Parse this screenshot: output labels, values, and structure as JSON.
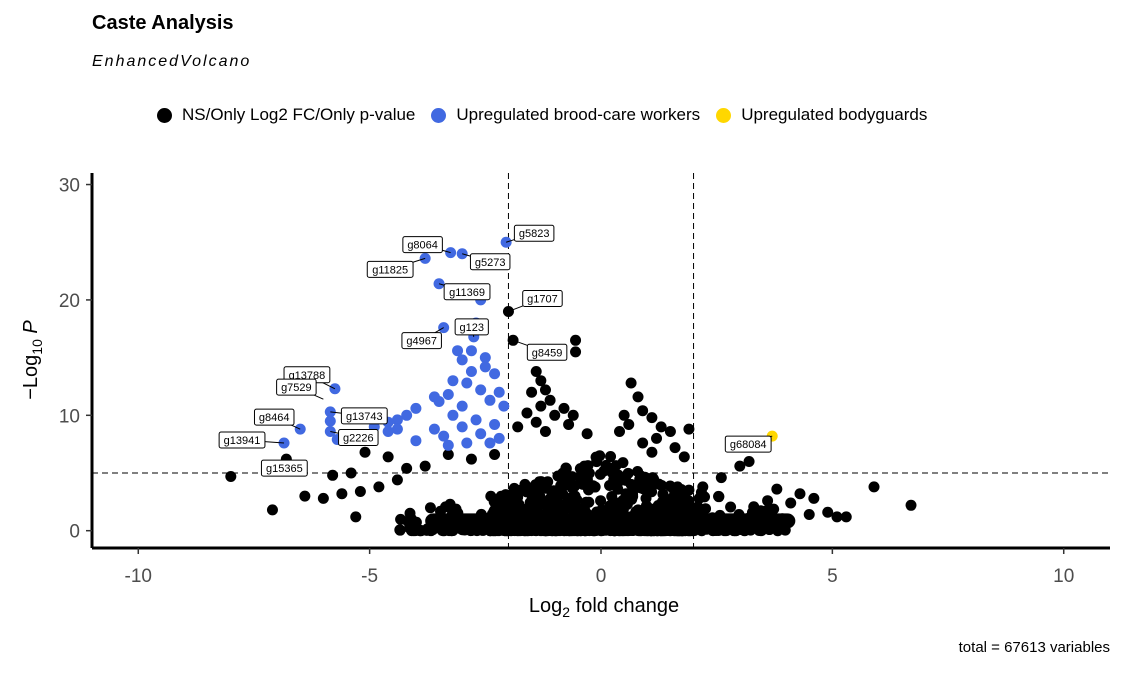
{
  "title": "Caste Analysis",
  "subtitle": "EnhancedVolcano",
  "caption": "total = 67613 variables",
  "legend": [
    {
      "label": "NS/Only Log2 FC/Only p-value",
      "color": "#000000"
    },
    {
      "label": "Upregulated brood-care workers",
      "color": "#4169E1"
    },
    {
      "label": "Upregulated bodyguards",
      "color": "#FFD700"
    }
  ],
  "chart_data": {
    "type": "scatter",
    "title": "Caste Analysis",
    "subtitle": "EnhancedVolcano",
    "xlabel": "Log2 fold change",
    "ylabel": "-Log10 P",
    "xlim": [
      -11,
      11
    ],
    "ylim": [
      -1.5,
      31
    ],
    "xticks": [
      -10,
      -5,
      0,
      5,
      10
    ],
    "yticks": [
      0,
      10,
      20,
      30
    ],
    "fc_cutoffs": [
      -2,
      2
    ],
    "p_cutoff_log10": 5,
    "series": [
      {
        "name": "Upregulated brood-care workers",
        "color": "#4169E1",
        "points": [
          {
            "x": -2.05,
            "y": 25.0,
            "label": "g5823"
          },
          {
            "x": -3.25,
            "y": 24.1,
            "label": "g8064"
          },
          {
            "x": -3.0,
            "y": 24.0,
            "label": "g5273"
          },
          {
            "x": -3.8,
            "y": 23.6,
            "label": "g11825"
          },
          {
            "x": -3.5,
            "y": 21.4,
            "label": "g11369"
          },
          {
            "x": -3.4,
            "y": 17.6,
            "label": "g4967"
          },
          {
            "x": -2.75,
            "y": 16.8,
            "label": "g123"
          },
          {
            "x": -5.75,
            "y": 12.3,
            "label": "g13788"
          },
          {
            "x": -5.85,
            "y": 10.3,
            "label": "g13743"
          },
          {
            "x": -6.5,
            "y": 8.8,
            "label": "g8464"
          },
          {
            "x": -5.85,
            "y": 8.6,
            "label": "g2226"
          },
          {
            "x": -6.85,
            "y": 7.6,
            "label": "g13941"
          },
          {
            "x": -5.85,
            "y": 9.5
          },
          {
            "x": -2.6,
            "y": 20.0
          },
          {
            "x": -2.7,
            "y": 18.0
          },
          {
            "x": -3.1,
            "y": 15.6
          },
          {
            "x": -2.8,
            "y": 15.6
          },
          {
            "x": -2.5,
            "y": 15.0
          },
          {
            "x": -3.0,
            "y": 14.8
          },
          {
            "x": -2.5,
            "y": 14.2
          },
          {
            "x": -2.3,
            "y": 13.6
          },
          {
            "x": -2.8,
            "y": 13.8
          },
          {
            "x": -3.2,
            "y": 13.0
          },
          {
            "x": -2.9,
            "y": 12.8
          },
          {
            "x": -2.6,
            "y": 12.2
          },
          {
            "x": -2.2,
            "y": 12.0
          },
          {
            "x": -3.3,
            "y": 11.8
          },
          {
            "x": -2.4,
            "y": 11.3
          },
          {
            "x": -3.6,
            "y": 11.6
          },
          {
            "x": -3.0,
            "y": 10.8
          },
          {
            "x": -2.1,
            "y": 10.8
          },
          {
            "x": -4.0,
            "y": 10.6
          },
          {
            "x": -3.5,
            "y": 11.2
          },
          {
            "x": -4.2,
            "y": 10.0
          },
          {
            "x": -3.2,
            "y": 10.0
          },
          {
            "x": -2.7,
            "y": 9.6
          },
          {
            "x": -2.3,
            "y": 9.2
          },
          {
            "x": -3.0,
            "y": 9.0
          },
          {
            "x": -3.6,
            "y": 8.8
          },
          {
            "x": -4.4,
            "y": 9.6
          },
          {
            "x": -4.6,
            "y": 9.4
          },
          {
            "x": -4.4,
            "y": 8.8
          },
          {
            "x": -3.4,
            "y": 8.2
          },
          {
            "x": -2.6,
            "y": 8.4
          },
          {
            "x": -2.2,
            "y": 8.0
          },
          {
            "x": -4.0,
            "y": 7.8
          },
          {
            "x": -4.6,
            "y": 8.6
          },
          {
            "x": -2.4,
            "y": 7.6
          },
          {
            "x": -3.3,
            "y": 7.4
          },
          {
            "x": -2.9,
            "y": 7.6
          },
          {
            "x": -4.9,
            "y": 9.0
          },
          {
            "x": -5.7,
            "y": 7.9
          }
        ]
      },
      {
        "name": "Upregulated bodyguards",
        "color": "#FFD700",
        "points": [
          {
            "x": 3.7,
            "y": 8.2,
            "label": "g68084"
          }
        ]
      },
      {
        "name": "NS/Only Log2 FC/Only p-value",
        "color": "#000000",
        "points": [
          {
            "x": -2.0,
            "y": 19.0,
            "label": "g1707"
          },
          {
            "x": -1.9,
            "y": 16.5,
            "label": "g8459"
          },
          {
            "x": -6.8,
            "y": 6.2,
            "label": "g15365"
          },
          {
            "x": -0.55,
            "y": 16.5
          },
          {
            "x": -0.55,
            "y": 15.5
          },
          {
            "x": -1.4,
            "y": 13.8
          },
          {
            "x": -1.3,
            "y": 13.0
          },
          {
            "x": -1.2,
            "y": 12.2
          },
          {
            "x": -1.5,
            "y": 12.0
          },
          {
            "x": -1.1,
            "y": 11.3
          },
          {
            "x": -1.3,
            "y": 10.8
          },
          {
            "x": -0.8,
            "y": 10.6
          },
          {
            "x": -1.6,
            "y": 10.2
          },
          {
            "x": -1.0,
            "y": 10.0
          },
          {
            "x": -0.6,
            "y": 10.0
          },
          {
            "x": -1.4,
            "y": 9.4
          },
          {
            "x": -1.8,
            "y": 9.0
          },
          {
            "x": -0.7,
            "y": 9.2
          },
          {
            "x": -1.2,
            "y": 8.6
          },
          {
            "x": -0.3,
            "y": 8.4
          },
          {
            "x": 0.65,
            "y": 12.8
          },
          {
            "x": 0.8,
            "y": 11.6
          },
          {
            "x": 0.9,
            "y": 10.4
          },
          {
            "x": 0.5,
            "y": 10.0
          },
          {
            "x": 1.1,
            "y": 9.8
          },
          {
            "x": 0.6,
            "y": 9.2
          },
          {
            "x": 1.3,
            "y": 9.0
          },
          {
            "x": 1.5,
            "y": 8.6
          },
          {
            "x": 0.4,
            "y": 8.6
          },
          {
            "x": 1.9,
            "y": 8.8
          },
          {
            "x": 1.2,
            "y": 8.0
          },
          {
            "x": 0.9,
            "y": 7.6
          },
          {
            "x": 1.6,
            "y": 7.2
          },
          {
            "x": 1.1,
            "y": 6.8
          },
          {
            "x": 1.8,
            "y": 6.4
          },
          {
            "x": 3.2,
            "y": 6.0
          },
          {
            "x": 3.0,
            "y": 5.6
          },
          {
            "x": -2.3,
            "y": 6.6
          },
          {
            "x": -2.8,
            "y": 6.2
          },
          {
            "x": -3.3,
            "y": 6.6
          },
          {
            "x": -3.8,
            "y": 5.6
          },
          {
            "x": -4.2,
            "y": 5.4
          },
          {
            "x": -4.6,
            "y": 6.4
          },
          {
            "x": -5.1,
            "y": 6.8
          },
          {
            "x": -5.4,
            "y": 5.0
          },
          {
            "x": -5.8,
            "y": 4.8
          },
          {
            "x": -4.4,
            "y": 4.4
          },
          {
            "x": -4.8,
            "y": 3.8
          },
          {
            "x": -5.2,
            "y": 3.4
          },
          {
            "x": -5.6,
            "y": 3.2
          },
          {
            "x": -6.0,
            "y": 2.8
          },
          {
            "x": -5.3,
            "y": 1.2
          },
          {
            "x": -6.4,
            "y": 3.0
          },
          {
            "x": -8.0,
            "y": 4.7
          },
          {
            "x": -7.1,
            "y": 1.8
          },
          {
            "x": 3.8,
            "y": 3.6
          },
          {
            "x": 4.3,
            "y": 3.2
          },
          {
            "x": 4.6,
            "y": 2.8
          },
          {
            "x": 4.9,
            "y": 1.6
          },
          {
            "x": 5.1,
            "y": 1.2
          },
          {
            "x": 5.3,
            "y": 1.2
          },
          {
            "x": 5.9,
            "y": 3.8
          },
          {
            "x": 6.7,
            "y": 2.2
          },
          {
            "x": 2.6,
            "y": 4.6
          },
          {
            "x": 2.2,
            "y": 3.8
          },
          {
            "x": 3.6,
            "y": 2.6
          },
          {
            "x": 4.1,
            "y": 2.4
          },
          {
            "x": 4.5,
            "y": 1.4
          }
        ]
      }
    ]
  }
}
